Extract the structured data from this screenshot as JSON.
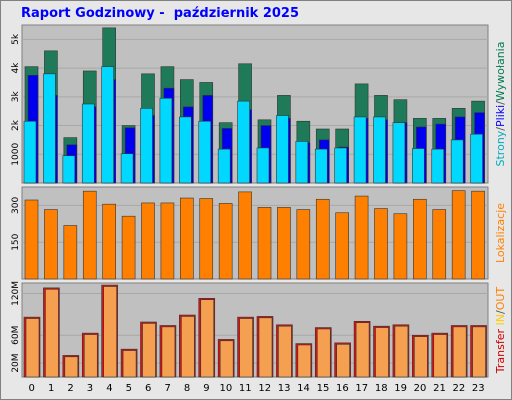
{
  "title": "Raport Godzinowy -  październik 2025",
  "chart_data": {
    "type": "bar",
    "categories": [
      "0",
      "1",
      "2",
      "3",
      "4",
      "5",
      "6",
      "7",
      "8",
      "9",
      "10",
      "11",
      "12",
      "13",
      "14",
      "15",
      "16",
      "17",
      "18",
      "19",
      "20",
      "21",
      "22",
      "23"
    ],
    "panels": [
      {
        "id": "top",
        "yticks": [
          "1000",
          "2k",
          "3k",
          "4k",
          "5k"
        ],
        "ytick_values": [
          1000,
          2000,
          3000,
          4000,
          5000
        ],
        "ymax": 5500,
        "side_label_parts": [
          {
            "text": "Strony",
            "color": "#00aabb"
          },
          {
            "text": "/",
            "color": "#555555"
          },
          {
            "text": "Pliki",
            "color": "#0000ff"
          },
          {
            "text": "/",
            "color": "#555555"
          },
          {
            "text": "Wywołania",
            "color": "#007a50"
          }
        ],
        "series": [
          {
            "name": "Wywołania",
            "color": "#1f7a5a",
            "values": [
              4050,
              4600,
              1580,
              3900,
              5400,
              2000,
              3800,
              4050,
              3600,
              3500,
              2100,
              4150,
              2200,
              3050,
              2150,
              1880,
              1880,
              3450,
              3050,
              2900,
              2250,
              2250,
              2600,
              2850
            ]
          },
          {
            "name": "Pliki",
            "color": "#0000ee",
            "values": [
              3750,
              3050,
              1330,
              2650,
              3600,
              1920,
              2350,
              3300,
              2650,
              3050,
              1900,
              2550,
              2000,
              2250,
              1400,
              1500,
              1250,
              2250,
              2200,
              2100,
              1950,
              2050,
              2300,
              2450
            ]
          },
          {
            "name": "Strony",
            "color": "#00d8ff",
            "values": [
              2150,
              3800,
              950,
              2750,
              4050,
              1020,
              2600,
              2950,
              2300,
              2150,
              1180,
              2850,
              1220,
              2350,
              1450,
              1180,
              1220,
              2300,
              2300,
              2100,
              1200,
              1180,
              1500,
              1700
            ]
          }
        ]
      },
      {
        "id": "mid",
        "yticks": [
          "150",
          "300"
        ],
        "ytick_values": [
          150,
          300
        ],
        "ymax": 375,
        "side_label_parts": [
          {
            "text": "Lokalizacje",
            "color": "#ff8000"
          }
        ],
        "series": [
          {
            "name": "Lokalizacje",
            "color": "#ff8000",
            "values": [
              322,
              283,
              218,
              358,
              305,
              256,
              310,
              310,
              330,
              328,
              308,
              355,
              292,
              292,
              283,
              325,
              270,
              338,
              287,
              266,
              325,
              283,
              360,
              358
            ]
          }
        ]
      },
      {
        "id": "bot",
        "yticks": [
          "20M",
          "60M",
          "120M"
        ],
        "ytick_values": [
          20,
          60,
          120
        ],
        "ymax": 135,
        "side_label_parts": [
          {
            "text": "Transfer",
            "color": "#cc0000"
          },
          {
            "text": " ",
            "color": "#555555"
          },
          {
            "text": "IN",
            "color": "#ffcc00"
          },
          {
            "text": "/",
            "color": "#555555"
          },
          {
            "text": "OUT",
            "color": "#ff8000"
          }
        ],
        "series": [
          {
            "name": "Transfer",
            "color": "#e01010",
            "values": [
              86,
              128,
              31,
              63,
              132,
              40,
              79,
              74,
              89,
              113,
              54,
              86,
              87,
              75,
              48,
              71,
              49,
              80,
              73,
              75,
              60,
              63,
              74,
              74
            ]
          },
          {
            "name": "OUT",
            "color": "#f5a050",
            "values": [
              84,
              126,
              29,
              61,
              130,
              38,
              77,
              72,
              87,
              111,
              52,
              84,
              85,
              73,
              46,
              69,
              47,
              78,
              71,
              73,
              58,
              61,
              72,
              72
            ]
          }
        ]
      }
    ]
  }
}
